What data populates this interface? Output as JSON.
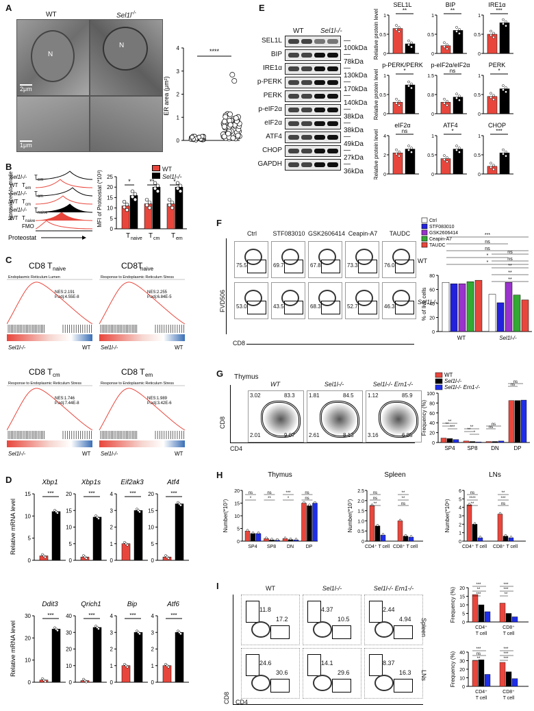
{
  "panels": {
    "A": {
      "label": "A",
      "wt": "WT",
      "ko": "Sel1l",
      "ko_sup": "-/-",
      "scale1": "2μm",
      "scale2": "1μm",
      "nucleus": "N",
      "star": "*",
      "ylabel": "ER area (μm²)",
      "sig": "****",
      "yticks": [
        "0",
        "1",
        "2",
        "3",
        "4"
      ]
    },
    "B": {
      "label": "B",
      "ylabel_hist": "Normalized to mode",
      "xlabel_hist": "Proteostat",
      "rows": [
        "T",
        "T",
        "T",
        "T",
        "T",
        "T",
        "FMO"
      ],
      "row_subs": [
        "em",
        "em",
        "cm",
        "cm",
        "naive",
        "naive",
        ""
      ],
      "row_geno": [
        "Sel1l-/-",
        "WT",
        "Sel1l-/-",
        "WT",
        "Sel1l-/-",
        "WT",
        ""
      ],
      "legend": [
        "WT",
        "Sel1l-/-"
      ],
      "ylabel": "MFI of Proteostat (*10³)",
      "yticks": [
        "0",
        "5",
        "10",
        "15",
        "20",
        "25"
      ],
      "groups": [
        "T",
        "T",
        "T"
      ],
      "group_subs": [
        "naive",
        "cm",
        "em"
      ],
      "sig": [
        "*",
        "**",
        "*"
      ]
    },
    "C": {
      "label": "C",
      "plots": [
        {
          "title": "CD8 T",
          "sub": "naive",
          "term": "Endoplasmic Reticulum Lumen",
          "nes": "NES:2.191",
          "padj": "P.adj:4.55E-8"
        },
        {
          "title": "CD8T",
          "sub": "naive",
          "term": "Response to Endoplasmic Reticulum Stress",
          "nes": "NES:2.255",
          "padj": "P.adj:6.84E-5"
        },
        {
          "title": "CD8 T",
          "sub": "cm",
          "term": "Response to Endoplasmic Reticulum Stress",
          "nes": "NES:1.746",
          "padj": "P.adj:7.44E-8"
        },
        {
          "title": "CD8 T",
          "sub": "em",
          "term": "Response to Endoplasmic Reticulum Stress",
          "nes": "NES:1.989",
          "padj": "P.adj:3.42E-6"
        }
      ],
      "left": "Sel1l-/-",
      "right": "WT"
    },
    "D": {
      "label": "D",
      "ylabel": "Relative mRNA level",
      "genes_top": [
        "Xbp1",
        "Xbp1s",
        "Eif2ak3",
        "Atf4"
      ],
      "genes_bottom": [
        "Ddit3",
        "Qrich1",
        "Bip",
        "Atf6"
      ],
      "sig": "***",
      "yticks_top": [
        [
          "0",
          "5",
          "10",
          "15"
        ],
        [
          "0",
          "5",
          "10",
          "15",
          "20"
        ],
        [
          "0",
          "1",
          "2",
          "3",
          "4"
        ],
        [
          "0",
          "5",
          "10",
          "15",
          "20"
        ]
      ],
      "yticks_bottom": [
        [
          "0",
          "10",
          "20",
          "30"
        ],
        [
          "0",
          "10",
          "20",
          "30",
          "40"
        ],
        [
          "0",
          "1",
          "2",
          "3",
          "4"
        ],
        [
          "0",
          "1",
          "2",
          "3",
          "4"
        ]
      ]
    },
    "E": {
      "label": "E",
      "wt": "WT",
      "ko": "Sel1l-/-",
      "blots": [
        "SEL1L",
        "BIP",
        "IRE1α",
        "p-PERK",
        "PERK",
        "p-eIF2α",
        "eIF2α",
        "ATF4",
        "CHOP",
        "GAPDH"
      ],
      "kda": [
        "100kDa",
        "78kDa",
        "130kDa",
        "170kDa",
        "140kDa",
        "38kDa",
        "38kDa",
        "49kDa",
        "27kDa",
        "36kDa"
      ],
      "ylabel": "Relative protein level",
      "titles": [
        "SEL1L",
        "BIP",
        "IRE1α",
        "p-PERK/PERK",
        "p-eIF2α/eIF2α",
        "PERK",
        "eIF2α",
        "ATF4",
        "CHOP"
      ],
      "sig": [
        "**",
        "**",
        "***",
        "*",
        "ns",
        "*",
        "ns",
        "*",
        "***"
      ]
    },
    "F": {
      "label": "F",
      "conds": [
        "Ctrl",
        "STF083010",
        "GSK2606414",
        "Ceapin-A7",
        "TAUDC"
      ],
      "wt_vals": [
        "75.5",
        "69.7",
        "67.8",
        "73.3",
        "76.0"
      ],
      "ko_vals": [
        "53.0",
        "43.5",
        "68.3",
        "52.7",
        "46.3"
      ],
      "yaxis": "FVD506",
      "xaxis": "CD8",
      "row_wt": "WT",
      "row_ko": "Sel1l-/-",
      "legend": [
        "Ctrl",
        "STF083010",
        "GSK2606414",
        "Ceapin-A7",
        "TAUDC"
      ],
      "legend_colors": [
        "#ffffff",
        "#2222dd",
        "#9933cc",
        "#33aa33",
        "#e8463c"
      ],
      "ylabel": "% of live cells",
      "yticks": [
        "0",
        "20",
        "40",
        "60",
        "80"
      ],
      "groups": [
        "WT",
        "Sel1l-/-"
      ],
      "sig": [
        "***",
        "ns",
        "ns",
        "*",
        "*",
        "ns",
        "ns",
        "**",
        "**",
        "**"
      ]
    },
    "G": {
      "label": "G",
      "title": "Thymus",
      "samples": [
        "WT",
        "Sel1l-/-",
        "Sel1l-/- Ern1-/-"
      ],
      "quads": [
        [
          "3.02",
          "83.3",
          "2.01",
          "9.07"
        ],
        [
          "1.81",
          "84.5",
          "2.61",
          "8.13"
        ],
        [
          "1.12",
          "85.9",
          "3.16",
          "6.85"
        ]
      ],
      "yaxis": "CD8",
      "xaxis": "CD4",
      "legend": [
        "WT",
        "Sel1l-/-",
        "Sel1l-/- Ern1-/-"
      ],
      "ylabel": "Frequency (%)",
      "yticks": [
        "0",
        "20",
        "40",
        "60",
        "80",
        "100"
      ],
      "groups": [
        "SP4",
        "SP8",
        "DN",
        "DP"
      ],
      "sig": [
        "**",
        "**",
        "***",
        "**",
        "**",
        "*",
        "ns",
        "ns",
        "ns",
        "ns"
      ]
    },
    "H": {
      "label": "H",
      "titles": [
        "Thymus",
        "Spleen",
        "LNs"
      ],
      "ylabel": "Number(*10⁷)",
      "ylabel2": "Number(*10⁶)",
      "thymus_groups": [
        "SP4",
        "SP8",
        "DN",
        "DP"
      ],
      "periph_groups": [
        "CD4⁺ T cell",
        "CD8⁺ T cell"
      ],
      "thymus_yticks": [
        "0",
        "5",
        "10",
        "15",
        "20"
      ],
      "spleen_yticks": [
        "0",
        "0.5",
        "1.0",
        "1.5",
        "2.0",
        "2.5"
      ],
      "lns_yticks": [
        "0",
        "1",
        "2",
        "3",
        "4",
        "5",
        "6"
      ],
      "sig": [
        "ns",
        "*",
        "ns",
        "**",
        "***",
        "*",
        "ns",
        "ns",
        "ns",
        "ns",
        "**",
        "**",
        "**",
        "ns",
        "ns",
        "****",
        "**",
        "**",
        "***",
        "ns"
      ]
    },
    "I": {
      "label": "I",
      "samples": [
        "WT",
        "Sel1l-/-",
        "Sel1l-/- Ern1-/-"
      ],
      "spleen_vals": [
        [
          "11.8",
          "17.2"
        ],
        [
          "4.37",
          "10.5"
        ],
        [
          "2.44",
          "4.94"
        ]
      ],
      "lns_vals": [
        [
          "24.6",
          "30.6"
        ],
        [
          "14.1",
          "29.6"
        ],
        [
          "8.37",
          "16.3"
        ]
      ],
      "row_labels": [
        "Spleen",
        "LNs"
      ],
      "yaxis": "CD8",
      "xaxis": "CD4",
      "ylabel": "Frequency (%)",
      "spleen_yticks": [
        "0",
        "5",
        "10",
        "15",
        "20"
      ],
      "lns_yticks": [
        "0",
        "10",
        "20",
        "30",
        "40"
      ],
      "groups": [
        "CD4⁺ T cell",
        "CD8⁺ T cell"
      ],
      "sig": [
        "***",
        "**",
        "***",
        "***",
        "***",
        "**",
        "***",
        "ns",
        "**",
        "***",
        "***",
        "***"
      ]
    }
  },
  "colors": {
    "wt": "#e8463c",
    "ko": "#000000",
    "dko": "#1e2ee8"
  },
  "chart_data": [
    {
      "type": "scatter",
      "panel": "A",
      "categories": [
        "WT",
        "Sel1l-/-"
      ],
      "values": [
        0.1,
        0.55
      ],
      "ylabel": "ER area (μm²)",
      "ylim": [
        0,
        4
      ]
    },
    {
      "type": "bar",
      "panel": "B",
      "categories": [
        "Tnaive",
        "Tcm",
        "Tem"
      ],
      "series": [
        {
          "name": "WT",
          "values": [
            11,
            12,
            12
          ]
        },
        {
          "name": "Sel1l-/-",
          "values": [
            16,
            20,
            20
          ]
        }
      ],
      "ylim": [
        0,
        25
      ]
    },
    {
      "type": "bar",
      "panel": "D-top",
      "categories": [
        "Xbp1",
        "Xbp1s",
        "Eif2ak3",
        "Atf4"
      ],
      "series": [
        {
          "name": "WT",
          "values": [
            1,
            1,
            1,
            1
          ]
        },
        {
          "name": "Sel1l-/-",
          "values": [
            11,
            13,
            3,
            17
          ]
        }
      ]
    },
    {
      "type": "bar",
      "panel": "D-bottom",
      "categories": [
        "Ddit3",
        "Qrich1",
        "Bip",
        "Atf6"
      ],
      "series": [
        {
          "name": "WT",
          "values": [
            1,
            1,
            1,
            1
          ]
        },
        {
          "name": "Sel1l-/-",
          "values": [
            24,
            33,
            3,
            3
          ]
        }
      ]
    },
    {
      "type": "bar",
      "panel": "E",
      "categories": [
        "SEL1L",
        "BIP",
        "IRE1α",
        "p-PERK/PERK",
        "p-eIF2α/eIF2α",
        "PERK",
        "eIF2α",
        "ATF4",
        "CHOP"
      ],
      "series": [
        {
          "name": "WT",
          "values": [
            0.65,
            0.2,
            0.5,
            0.3,
            0.45,
            0.45,
            2.2,
            0.4,
            0.2
          ]
        },
        {
          "name": "Sel1l-/-",
          "values": [
            0.25,
            0.6,
            0.8,
            0.75,
            0.65,
            0.65,
            2.6,
            0.65,
            0.55
          ]
        }
      ]
    },
    {
      "type": "bar",
      "panel": "F",
      "categories": [
        "WT",
        "Sel1l-/-"
      ],
      "series": [
        {
          "name": "Ctrl",
          "values": [
            70,
            53
          ]
        },
        {
          "name": "STF083010",
          "values": [
            68,
            41
          ]
        },
        {
          "name": "GSK2606414",
          "values": [
            68,
            70
          ]
        },
        {
          "name": "Ceapin-A7",
          "values": [
            71,
            52
          ]
        },
        {
          "name": "TAUDC",
          "values": [
            73,
            45
          ]
        }
      ],
      "ylim": [
        0,
        80
      ]
    },
    {
      "type": "bar",
      "panel": "G",
      "categories": [
        "SP4",
        "SP8",
        "DN",
        "DP"
      ],
      "series": [
        {
          "name": "WT",
          "values": [
            9,
            3,
            2,
            85
          ]
        },
        {
          "name": "Sel1l-/-",
          "values": [
            8,
            2,
            2,
            85
          ]
        },
        {
          "name": "Sel1l-/- Ern1-/-",
          "values": [
            6,
            1.2,
            3,
            86
          ]
        }
      ],
      "ylim": [
        0,
        100
      ]
    },
    {
      "type": "bar",
      "panel": "H-thymus",
      "categories": [
        "SP4",
        "SP8",
        "DN",
        "DP"
      ],
      "series": [
        {
          "name": "WT",
          "values": [
            4,
            1,
            1,
            15
          ]
        },
        {
          "name": "Sel1l-/-",
          "values": [
            3,
            0.5,
            0.6,
            14
          ]
        },
        {
          "name": "Sel1l-/- Ern1-/-",
          "values": [
            3,
            0.4,
            0.5,
            15
          ]
        }
      ],
      "ylim": [
        0,
        20
      ]
    },
    {
      "type": "bar",
      "panel": "H-spleen",
      "categories": [
        "CD4+ T cell",
        "CD8+ T cell"
      ],
      "series": [
        {
          "name": "WT",
          "values": [
            1.75,
            1.0
          ]
        },
        {
          "name": "Sel1l-/-",
          "values": [
            0.75,
            0.25
          ]
        },
        {
          "name": "Sel1l-/- Ern1-/-",
          "values": [
            0.3,
            0.2
          ]
        }
      ],
      "ylim": [
        0,
        2.5
      ]
    },
    {
      "type": "bar",
      "panel": "H-LNs",
      "categories": [
        "CD4+ T cell",
        "CD8+ T cell"
      ],
      "series": [
        {
          "name": "WT",
          "values": [
            4.3,
            3.2
          ]
        },
        {
          "name": "Sel1l-/-",
          "values": [
            2,
            0.6
          ]
        },
        {
          "name": "Sel1l-/- Ern1-/-",
          "values": [
            0.4,
            0.4
          ]
        }
      ],
      "ylim": [
        0,
        6
      ]
    },
    {
      "type": "bar",
      "panel": "I-spleen",
      "categories": [
        "CD4+ T cell",
        "CD8+ T cell"
      ],
      "series": [
        {
          "name": "WT",
          "values": [
            16,
            11
          ]
        },
        {
          "name": "Sel1l-/-",
          "values": [
            10,
            5
          ]
        },
        {
          "name": "Sel1l-/- Ern1-/-",
          "values": [
            6,
            3
          ]
        }
      ],
      "ylim": [
        0,
        20
      ]
    },
    {
      "type": "bar",
      "panel": "I-LNs",
      "categories": [
        "CD4+ T cell",
        "CD8+ T cell"
      ],
      "series": [
        {
          "name": "WT",
          "values": [
            30,
            28
          ]
        },
        {
          "name": "Sel1l-/-",
          "values": [
            31,
            17
          ]
        },
        {
          "name": "Sel1l-/- Ern1-/-",
          "values": [
            14,
            9
          ]
        }
      ],
      "ylim": [
        0,
        40
      ]
    }
  ]
}
